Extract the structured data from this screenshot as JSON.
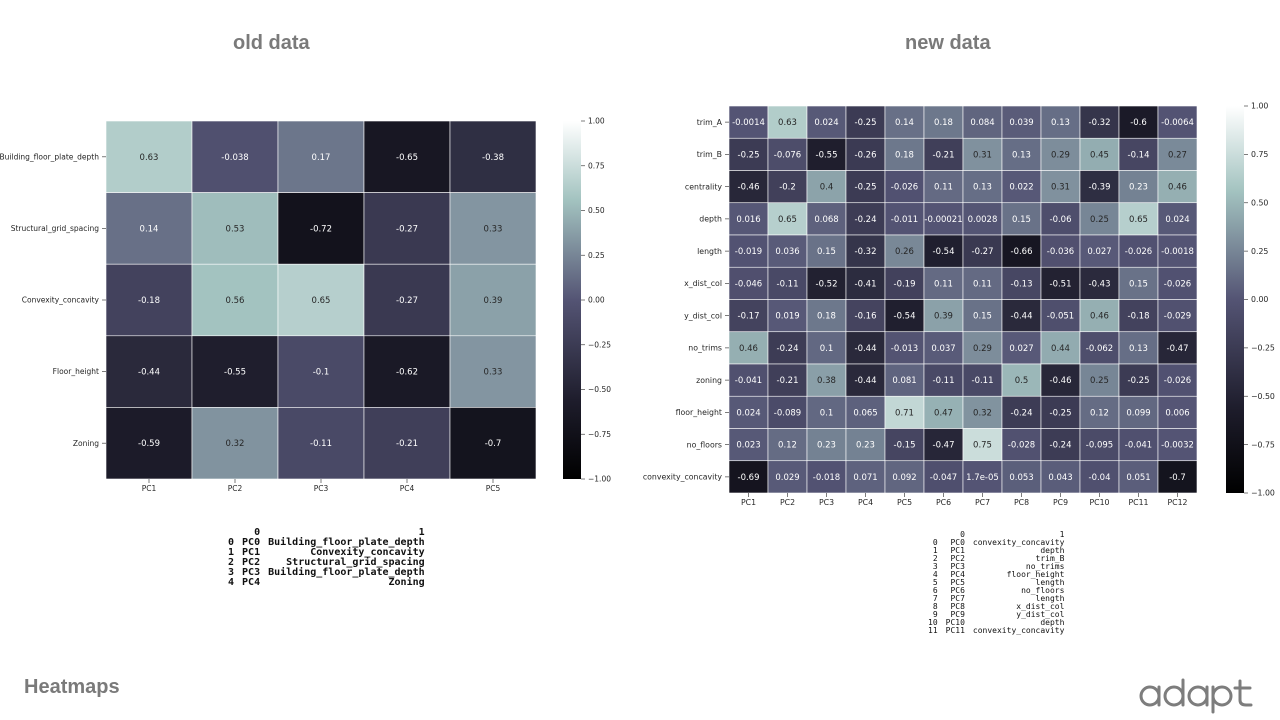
{
  "titles": {
    "old": "old data",
    "new": "new data"
  },
  "footer": "Heatmaps",
  "logo_text": "adapt",
  "colors": {
    "title": "#7a7a7a",
    "cmap_low": "#000000",
    "cmap_mid": "#4f4e6e",
    "cmap_high": "#ffffff"
  },
  "chart_data": [
    {
      "type": "heatmap",
      "title": "old data",
      "rows": [
        "Building_floor_plate_depth",
        "Structural_grid_spacing",
        "Convexity_concavity",
        "Floor_height",
        "Zoning"
      ],
      "columns": [
        "PC1",
        "PC2",
        "PC3",
        "PC4",
        "PC5"
      ],
      "values": [
        [
          0.63,
          -0.038,
          0.17,
          -0.65,
          -0.38
        ],
        [
          0.14,
          0.53,
          -0.72,
          -0.27,
          0.33
        ],
        [
          -0.18,
          0.56,
          0.65,
          -0.27,
          0.39
        ],
        [
          -0.44,
          -0.55,
          -0.1,
          -0.62,
          0.33
        ],
        [
          -0.59,
          0.32,
          -0.11,
          -0.21,
          -0.7
        ]
      ],
      "labels": [
        [
          "0.63",
          "-0.038",
          "0.17",
          "-0.65",
          "-0.38"
        ],
        [
          "0.14",
          "0.53",
          "-0.72",
          "-0.27",
          "0.33"
        ],
        [
          "-0.18",
          "0.56",
          "0.65",
          "-0.27",
          "0.39"
        ],
        [
          "-0.44",
          "-0.55",
          "-0.1",
          "-0.62",
          "0.33"
        ],
        [
          "-0.59",
          "0.32",
          "-0.11",
          "-0.21",
          "-0.7"
        ]
      ],
      "vmin": -1.0,
      "vmax": 1.0,
      "colorbar_ticks": [
        "1.00",
        "0.75",
        "0.50",
        "0.25",
        "0.00",
        "−0.25",
        "−0.50",
        "−0.75",
        "−1.00"
      ]
    },
    {
      "type": "heatmap",
      "title": "new data",
      "rows": [
        "trim_A",
        "trim_B",
        "centrality",
        "depth",
        "length",
        "x_dist_col",
        "y_dist_col",
        "no_trims",
        "zoning",
        "floor_height",
        "no_floors",
        "convexity_concavity"
      ],
      "columns": [
        "PC1",
        "PC2",
        "PC3",
        "PC4",
        "PC5",
        "PC6",
        "PC7",
        "PC8",
        "PC9",
        "PC10",
        "PC11",
        "PC12"
      ],
      "values": [
        [
          -0.0014,
          0.63,
          0.024,
          -0.25,
          0.14,
          0.18,
          0.084,
          0.039,
          0.13,
          -0.32,
          -0.6,
          -0.0064
        ],
        [
          -0.25,
          -0.076,
          -0.55,
          -0.26,
          0.18,
          -0.21,
          0.31,
          0.13,
          0.29,
          0.45,
          -0.14,
          0.27
        ],
        [
          -0.46,
          -0.2,
          0.4,
          -0.25,
          -0.026,
          0.11,
          0.13,
          0.022,
          0.31,
          -0.39,
          0.23,
          0.46
        ],
        [
          0.016,
          0.65,
          0.068,
          -0.24,
          -0.011,
          -0.00021,
          0.0028,
          0.15,
          -0.06,
          0.25,
          0.65,
          0.024
        ],
        [
          -0.019,
          0.036,
          0.15,
          -0.32,
          0.26,
          -0.54,
          -0.27,
          -0.66,
          -0.036,
          0.027,
          -0.026,
          -0.0018
        ],
        [
          -0.046,
          -0.11,
          -0.52,
          -0.41,
          -0.19,
          0.11,
          0.11,
          -0.13,
          -0.51,
          -0.43,
          0.15,
          -0.026
        ],
        [
          -0.17,
          0.019,
          0.18,
          -0.16,
          -0.54,
          0.39,
          0.15,
          -0.44,
          -0.051,
          0.46,
          -0.18,
          -0.029
        ],
        [
          0.46,
          -0.24,
          0.1,
          -0.44,
          -0.013,
          0.037,
          0.29,
          0.027,
          0.44,
          -0.062,
          0.13,
          -0.47
        ],
        [
          -0.041,
          -0.21,
          0.38,
          -0.44,
          0.081,
          -0.11,
          -0.11,
          0.5,
          -0.46,
          0.25,
          -0.25,
          -0.026
        ],
        [
          0.024,
          -0.089,
          0.1,
          0.065,
          0.71,
          0.47,
          0.32,
          -0.24,
          -0.25,
          0.12,
          0.099,
          0.006
        ],
        [
          0.023,
          0.12,
          0.23,
          0.23,
          -0.15,
          -0.47,
          0.75,
          -0.028,
          -0.24,
          -0.095,
          -0.041,
          -0.0032
        ],
        [
          -0.69,
          0.029,
          -0.018,
          0.071,
          0.092,
          -0.047,
          1.7e-05,
          0.053,
          0.043,
          -0.04,
          0.051,
          -0.7
        ]
      ],
      "labels": [
        [
          "-0.0014",
          "0.63",
          "0.024",
          "-0.25",
          "0.14",
          "0.18",
          "0.084",
          "0.039",
          "0.13",
          "-0.32",
          "-0.6",
          "-0.0064"
        ],
        [
          "-0.25",
          "-0.076",
          "-0.55",
          "-0.26",
          "0.18",
          "-0.21",
          "0.31",
          "0.13",
          "0.29",
          "0.45",
          "-0.14",
          "0.27"
        ],
        [
          "-0.46",
          "-0.2",
          "0.4",
          "-0.25",
          "-0.026",
          "0.11",
          "0.13",
          "0.022",
          "0.31",
          "-0.39",
          "0.23",
          "0.46"
        ],
        [
          "0.016",
          "0.65",
          "0.068",
          "-0.24",
          "-0.011",
          "-0.00021",
          "0.0028",
          "0.15",
          "-0.06",
          "0.25",
          "0.65",
          "0.024"
        ],
        [
          "-0.019",
          "0.036",
          "0.15",
          "-0.32",
          "0.26",
          "-0.54",
          "-0.27",
          "-0.66",
          "-0.036",
          "0.027",
          "-0.026",
          "-0.0018"
        ],
        [
          "-0.046",
          "-0.11",
          "-0.52",
          "-0.41",
          "-0.19",
          "0.11",
          "0.11",
          "-0.13",
          "-0.51",
          "-0.43",
          "0.15",
          "-0.026"
        ],
        [
          "-0.17",
          "0.019",
          "0.18",
          "-0.16",
          "-0.54",
          "0.39",
          "0.15",
          "-0.44",
          "-0.051",
          "0.46",
          "-0.18",
          "-0.029"
        ],
        [
          "0.46",
          "-0.24",
          "0.1",
          "-0.44",
          "-0.013",
          "0.037",
          "0.29",
          "0.027",
          "0.44",
          "-0.062",
          "0.13",
          "-0.47"
        ],
        [
          "-0.041",
          "-0.21",
          "0.38",
          "-0.44",
          "0.081",
          "-0.11",
          "-0.11",
          "0.5",
          "-0.46",
          "0.25",
          "-0.25",
          "-0.026"
        ],
        [
          "0.024",
          "-0.089",
          "0.1",
          "0.065",
          "0.71",
          "0.47",
          "0.32",
          "-0.24",
          "-0.25",
          "0.12",
          "0.099",
          "0.006"
        ],
        [
          "0.023",
          "0.12",
          "0.23",
          "0.23",
          "-0.15",
          "-0.47",
          "0.75",
          "-0.028",
          "-0.24",
          "-0.095",
          "-0.041",
          "-0.0032"
        ],
        [
          "-0.69",
          "0.029",
          "-0.018",
          "0.071",
          "0.092",
          "-0.047",
          "1.7e-05",
          "0.053",
          "0.043",
          "-0.04",
          "0.051",
          "-0.7"
        ]
      ],
      "vmin": -1.0,
      "vmax": 1.0,
      "colorbar_ticks": [
        "1.00",
        "0.75",
        "0.50",
        "0.25",
        "0.00",
        "−0.25",
        "−0.50",
        "−0.75",
        "−1.00"
      ]
    }
  ],
  "tables": {
    "old": {
      "header": [
        "",
        "0",
        "1"
      ],
      "rows": [
        [
          "0",
          "PC0",
          "Building_floor_plate_depth"
        ],
        [
          "1",
          "PC1",
          "Convexity_concavity"
        ],
        [
          "2",
          "PC2",
          "Structural_grid_spacing"
        ],
        [
          "3",
          "PC3",
          "Building_floor_plate_depth"
        ],
        [
          "4",
          "PC4",
          "Zoning"
        ]
      ]
    },
    "new": {
      "header": [
        "",
        "0",
        "1"
      ],
      "rows": [
        [
          "0",
          "PC0",
          "convexity_concavity"
        ],
        [
          "1",
          "PC1",
          "depth"
        ],
        [
          "2",
          "PC2",
          "trim_B"
        ],
        [
          "3",
          "PC3",
          "no_trims"
        ],
        [
          "4",
          "PC4",
          "floor_height"
        ],
        [
          "5",
          "PC5",
          "length"
        ],
        [
          "6",
          "PC6",
          "no_floors"
        ],
        [
          "7",
          "PC7",
          "length"
        ],
        [
          "8",
          "PC8",
          "x_dist_col"
        ],
        [
          "9",
          "PC9",
          "y_dist_col"
        ],
        [
          "10",
          "PC10",
          "depth"
        ],
        [
          "11",
          "PC11",
          "convexity_concavity"
        ]
      ]
    }
  }
}
